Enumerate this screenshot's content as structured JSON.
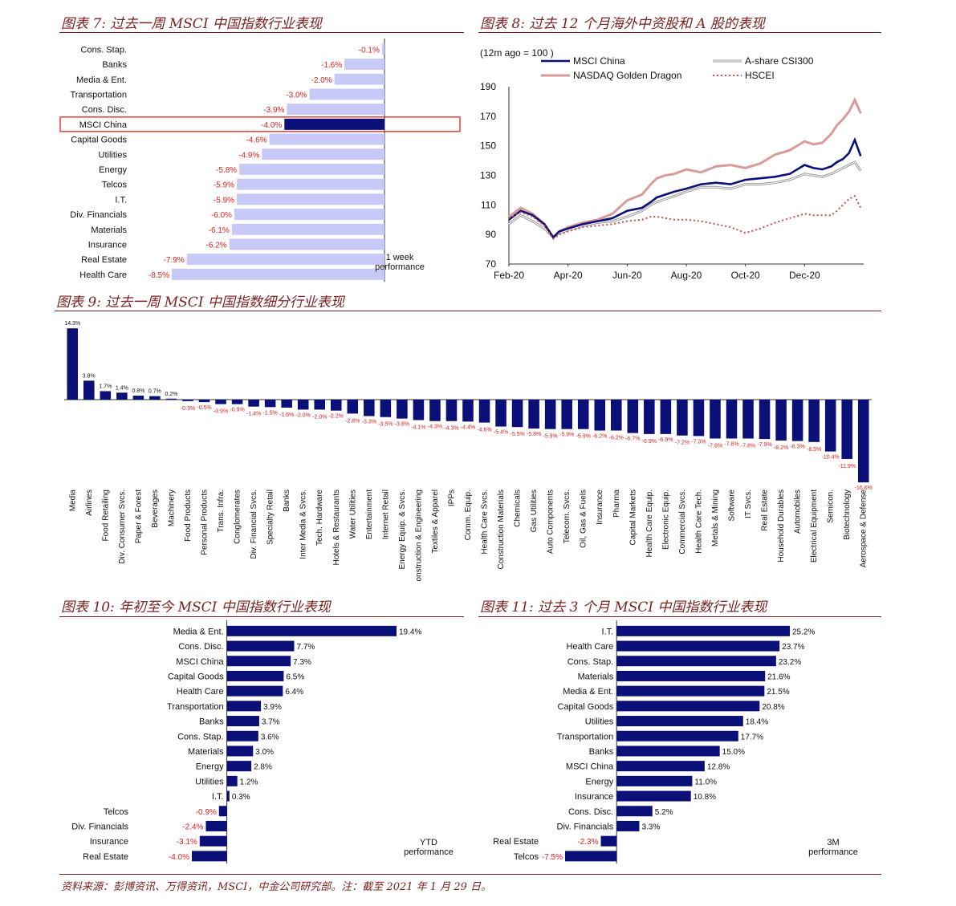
{
  "footer": "资料来源：彭博资讯、万得资讯，MSCI，中金公司研究部。注：截至 2021 年 1 月 29 日。",
  "colors": {
    "navy": "#0b0f78",
    "lavender": "#c9c9f8",
    "red": "#e0201e",
    "pink": "#d99a9a",
    "gray": "#9a9a9a",
    "dotted": "#c0504d",
    "title": "#7b1f1f"
  },
  "chart_data": [
    {
      "id": "fig7",
      "type": "bar",
      "orientation": "horizontal",
      "title": "图表 7:  过去一周 MSCI  中国指数行业表现",
      "annotation": [
        "1 week",
        "performance"
      ],
      "highlight": "MSCI China",
      "categories": [
        "Cons. Stap.",
        "Banks",
        "Media & Ent.",
        "Transportation",
        "Cons. Disc.",
        "MSCI China",
        "Capital Goods",
        "Utilities",
        "Energy",
        "Telcos",
        "I.T.",
        "Div. Financials",
        "Materials",
        "Insurance",
        "Real Estate",
        "Health Care"
      ],
      "values": [
        -0.1,
        -1.6,
        -2.0,
        -3.0,
        -3.9,
        -4.0,
        -4.6,
        -4.9,
        -5.8,
        -5.9,
        -5.9,
        -6.0,
        -6.1,
        -6.2,
        -7.9,
        -8.5
      ],
      "labels": [
        "-0.1%",
        "-1.6%",
        "-2.0%",
        "-3.0%",
        "-3.9%",
        "-4.0%",
        "-4.6%",
        "-4.9%",
        "-5.8%",
        "-5.9%",
        "-5.9%",
        "-6.0%",
        "-6.1%",
        "-6.2%",
        "-7.9%",
        "-8.5%"
      ],
      "xlim": [
        -8.5,
        0
      ]
    },
    {
      "id": "fig8",
      "type": "line",
      "title": "图表 8:  过去 12  个月海外中资股和 A  股的表现",
      "ylabel": "(12m ago  = 100 )",
      "ylim": [
        70,
        190
      ],
      "yticks": [
        "70",
        "90",
        "110",
        "130",
        "150",
        "170",
        "190"
      ],
      "xticks": [
        "Feb-20",
        "Apr-20",
        "Jun-20",
        "Aug-20",
        "Oct-20",
        "Dec-20"
      ],
      "xtick_pos": [
        0,
        2,
        4,
        6,
        8,
        10
      ],
      "xlim": [
        0,
        12
      ],
      "series": [
        {
          "name": "NASDAQ Golden Dragon",
          "style": "pink",
          "x": [
            0,
            0.4,
            0.8,
            1.2,
            1.5,
            1.7,
            2,
            2.5,
            3,
            3.5,
            4,
            4.5,
            4.8,
            5,
            5.3,
            5.6,
            6,
            6.5,
            7,
            7.5,
            8,
            8.5,
            9,
            9.5,
            10,
            10.3,
            10.6,
            10.9,
            11.1,
            11.3,
            11.5,
            11.7,
            11.9
          ],
          "y": [
            102,
            108,
            104,
            97,
            88,
            92,
            95,
            98,
            100,
            104,
            113,
            117,
            124,
            128,
            130,
            131,
            134,
            132,
            136,
            137,
            135,
            138,
            144,
            147,
            153,
            151,
            152,
            158,
            164,
            168,
            173,
            181,
            172
          ]
        },
        {
          "name": "A-share CSI300",
          "style": "gray",
          "x": [
            0,
            0.4,
            0.8,
            1.2,
            1.5,
            1.7,
            2,
            2.5,
            3,
            3.5,
            4,
            4.5,
            4.8,
            5,
            5.3,
            5.6,
            6,
            6.5,
            7,
            7.5,
            8,
            8.5,
            9,
            9.5,
            10,
            10.3,
            10.6,
            10.9,
            11.1,
            11.3,
            11.5,
            11.7,
            11.9
          ],
          "y": [
            97,
            103,
            99,
            94,
            88,
            91,
            93,
            96,
            98,
            99,
            102,
            106,
            110,
            112,
            114,
            116,
            119,
            122,
            122,
            121,
            124,
            124,
            125,
            127,
            131,
            130,
            129,
            131,
            133,
            135,
            137,
            139,
            133
          ]
        },
        {
          "name": "MSCI China",
          "style": "navy",
          "x": [
            0,
            0.4,
            0.8,
            1.2,
            1.5,
            1.7,
            2,
            2.5,
            3,
            3.5,
            4,
            4.5,
            4.8,
            5,
            5.3,
            5.6,
            6,
            6.5,
            7,
            7.5,
            8,
            8.5,
            9,
            9.5,
            10,
            10.3,
            10.6,
            10.9,
            11.1,
            11.3,
            11.5,
            11.7,
            11.9
          ],
          "y": [
            100,
            106,
            103,
            97,
            88,
            92,
            94,
            97,
            99,
            101,
            106,
            108,
            112,
            115,
            117,
            119,
            121,
            124,
            125,
            124,
            127,
            128,
            129,
            131,
            137,
            135,
            134,
            136,
            139,
            141,
            145,
            154,
            143
          ]
        },
        {
          "name": "HSCEI",
          "style": "dotted",
          "x": [
            0,
            0.4,
            0.8,
            1.2,
            1.5,
            1.7,
            2,
            2.5,
            3,
            3.5,
            4,
            4.5,
            4.8,
            5,
            5.3,
            5.6,
            6,
            6.5,
            7,
            7.5,
            8,
            8.5,
            9,
            9.5,
            10,
            10.3,
            10.6,
            10.9,
            11.1,
            11.3,
            11.5,
            11.7,
            11.9
          ],
          "y": [
            101,
            105,
            102,
            96,
            87,
            90,
            92,
            95,
            96,
            97,
            99,
            100,
            102,
            102,
            101,
            100,
            100,
            99,
            97,
            95,
            91,
            94,
            98,
            101,
            104,
            103,
            103,
            103,
            106,
            110,
            114,
            116,
            108
          ]
        }
      ]
    },
    {
      "id": "fig9",
      "type": "bar",
      "orientation": "vertical",
      "title": "图表 9:  过去一周 MSCI  中国指数细分行业表现",
      "categories": [
        "Media",
        "Airlines",
        "Food Retailing",
        "Div. Consumer Svcs.",
        "Paper & Forest",
        "Beverages",
        "Machinery",
        "Food Products",
        "Personal Products",
        "Trans. Infra.",
        "Conglomerates",
        "Div. Financial Svcs.",
        "Specialty Retail",
        "Banks",
        "Inter Media & Svcs.",
        "Tech. Hardware",
        "Hotels & Restaurants",
        "Water Utilities",
        "Entertainment",
        "Internet Retail",
        "Energy Equip. & Svcs.",
        "Construction & Engineering",
        "Textiles & Apparel",
        "IPPs",
        "Comm. Equip.",
        "Health Care Svcs.",
        "Construction Materials",
        "Chemicals",
        "Gas Utilities",
        "Auto Components",
        "Telecom. Svcs.",
        "Oil, Gas & Fuels",
        "Insurance",
        "Pharma",
        "Capital Markets",
        "Health Care Equip.",
        "Electronic Equip.",
        "Commercial Svcs.",
        "Health Care Tech.",
        "Metals & Mining",
        "Software",
        "IT Svcs.",
        "Real Estate",
        "Household Durables",
        "Automobiles",
        "Electrical Equipment",
        "Semicon.",
        "Biotechnology",
        "Aerospace & Defense"
      ],
      "values": [
        14.3,
        3.8,
        1.7,
        1.4,
        0.8,
        0.7,
        0.2,
        -0.3,
        -0.5,
        -0.9,
        -0.9,
        -1.4,
        -1.5,
        -1.6,
        -2.0,
        -2.0,
        -2.2,
        -2.8,
        -3.3,
        -3.5,
        -3.8,
        -4.1,
        -4.3,
        -4.3,
        -4.4,
        -4.6,
        -5.4,
        -5.5,
        -5.8,
        -5.9,
        -5.9,
        -5.9,
        -6.2,
        -6.2,
        -6.7,
        -6.9,
        -6.9,
        -7.2,
        -7.3,
        -7.8,
        -7.8,
        -7.8,
        -7.9,
        -8.2,
        -8.3,
        -8.5,
        -10.4,
        -11.9,
        -16.6
      ],
      "labels": [
        "14.3%",
        "3.8%",
        "1.7%",
        "1.4%",
        "0.8%",
        "0.7%",
        "0.2%",
        "-0.3%",
        "-0.5%",
        "-0.9%",
        "-0.9%",
        "-1.4%",
        "-1.5%",
        "-1.6%",
        "-2.0%",
        "-2.0%",
        "-2.2%",
        "-2.8%",
        "-3.3%",
        "-3.5%",
        "-3.8%",
        "-4.1%",
        "-4.3%",
        "-4.3%",
        "-4.4%",
        "-4.6%",
        "-5.4%",
        "-5.5%",
        "-5.8%",
        "-5.9%",
        "-5.9%",
        "-5.9%",
        "-6.2%",
        "-6.2%",
        "-6.7%",
        "-6.9%",
        "-6.9%",
        "-7.2%",
        "-7.3%",
        "-7.8%",
        "-7.8%",
        "-7.8%",
        "-7.9%",
        "-8.2%",
        "-8.3%",
        "-8.5%",
        "-10.4%",
        "-11.9%",
        "-16.6%"
      ],
      "ylim": [
        -16.6,
        14.3
      ]
    },
    {
      "id": "fig10",
      "type": "bar",
      "orientation": "horizontal",
      "title": "图表 10:  年初至今 MSCI  中国指数行业表现",
      "annotation": [
        "YTD",
        "performance"
      ],
      "categories": [
        "Media & Ent.",
        "Cons. Disc.",
        "MSCI China",
        "Capital Goods",
        "Health Care",
        "Transportation",
        "Banks",
        "Cons. Stap.",
        "Materials",
        "Energy",
        "Utilities",
        "I.T.",
        "Telcos",
        "Div. Financials",
        "Insurance",
        "Real Estate"
      ],
      "values": [
        19.4,
        7.7,
        7.3,
        6.5,
        6.4,
        3.9,
        3.7,
        3.6,
        3.0,
        2.8,
        1.2,
        0.3,
        -0.9,
        -2.4,
        -3.1,
        -4.0
      ],
      "labels": [
        "19.4%",
        "7.7%",
        "7.3%",
        "6.5%",
        "6.4%",
        "3.9%",
        "3.7%",
        "3.6%",
        "3.0%",
        "2.8%",
        "1.2%",
        "0.3%",
        "-0.9%",
        "-2.4%",
        "-3.1%",
        "-4.0%"
      ],
      "xlim": [
        -4.0,
        19.4
      ]
    },
    {
      "id": "fig11",
      "type": "bar",
      "orientation": "horizontal",
      "title": "图表 11:  过去 3  个月 MSCI  中国指数行业表现",
      "annotation": [
        "3M",
        "performance"
      ],
      "categories": [
        "I.T.",
        "Health Care",
        "Cons. Stap.",
        "Materials",
        "Media & Ent.",
        "Capital Goods",
        "Utilities",
        "Transportation",
        "Banks",
        "MSCI China",
        "Energy",
        "Insurance",
        "Cons. Disc.",
        "Div. Financials",
        "Real Estate",
        "Telcos"
      ],
      "values": [
        25.2,
        23.7,
        23.2,
        21.6,
        21.5,
        20.8,
        18.4,
        17.7,
        15.0,
        12.8,
        11.0,
        10.8,
        5.2,
        3.3,
        -2.3,
        -7.5
      ],
      "labels": [
        "25.2%",
        "23.7%",
        "23.2%",
        "21.6%",
        "21.5%",
        "20.8%",
        "18.4%",
        "17.7%",
        "15.0%",
        "12.8%",
        "11.0%",
        "10.8%",
        "5.2%",
        "3.3%",
        "-2.3%",
        "-7.5%"
      ],
      "xlim": [
        -7.5,
        25.2
      ]
    }
  ]
}
